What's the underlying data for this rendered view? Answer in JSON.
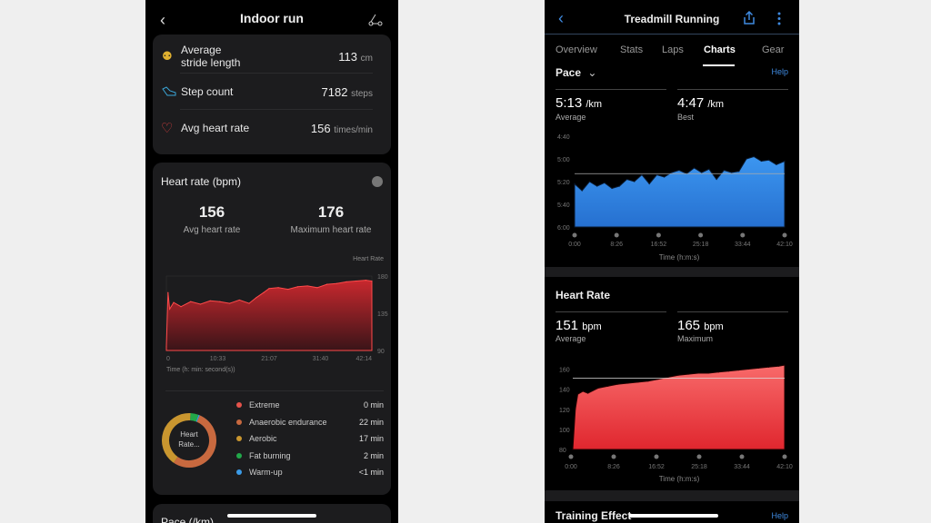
{
  "left": {
    "header": {
      "title": "Indoor run",
      "back_icon": "chevron-left-icon",
      "route_icon": "route-icon"
    },
    "stats": [
      {
        "icon": "footprints-icon",
        "label_line1": "Average",
        "label_line2": "stride length",
        "value": "113",
        "unit": "cm",
        "color": "#e0b030"
      },
      {
        "icon": "shoe-icon",
        "label": "Step count",
        "value": "7182",
        "unit": "steps",
        "color": "#3aa6d8"
      },
      {
        "icon": "heart-icon",
        "label": "Avg heart rate",
        "value": "156",
        "unit": "times/min",
        "color": "#d84040"
      }
    ],
    "heart_card": {
      "title": "Heart rate (bpm)",
      "avg_value": "156",
      "avg_label": "Avg heart rate",
      "max_value": "176",
      "max_label": "Maximum heart rate",
      "series_label": "Heart Rate",
      "x_axis_label": "Time  (h: min: second(s))",
      "zones": [
        {
          "name": "Extreme",
          "value": "0 min",
          "minutes": 0,
          "color": "#e5534b"
        },
        {
          "name": "Anaerobic endurance",
          "value": "22 min",
          "minutes": 22,
          "color": "#c8693f"
        },
        {
          "name": "Aerobic",
          "value": "17 min",
          "minutes": 17,
          "color": "#c9962f"
        },
        {
          "name": "Fat burning",
          "value": "2 min",
          "minutes": 2,
          "color": "#22a84a"
        },
        {
          "name": "Warm-up",
          "value": "<1 min",
          "minutes": 0.3,
          "color": "#3b9be8"
        }
      ],
      "donut_center": "Heart Rate..."
    },
    "next_card_title": "Pace (/km)"
  },
  "right": {
    "header": {
      "title": "Treadmill Running",
      "back_icon": "chevron-left-icon",
      "share_icon": "share-icon",
      "more_icon": "more-vertical-icon"
    },
    "tabs": [
      "Overview",
      "Stats",
      "Laps",
      "Charts",
      "Gear"
    ],
    "active_tab": "Charts",
    "pace": {
      "selector": "Pace",
      "help": "Help",
      "avg": "5:13",
      "avg_unit": "/km",
      "avg_label": "Average",
      "best": "4:47",
      "best_unit": "/km",
      "best_label": "Best",
      "x_axis_label": "Time (h:m:s)"
    },
    "heart": {
      "title": "Heart Rate",
      "avg": "151",
      "avg_unit": "bpm",
      "avg_label": "Average",
      "max": "165",
      "max_unit": "bpm",
      "max_label": "Maximum",
      "x_axis_label": "Time (h:m:s)"
    },
    "training": {
      "title": "Training Effect",
      "help": "Help"
    }
  },
  "chart_data": [
    {
      "type": "area",
      "title": "Heart rate (bpm)",
      "ylabel": "Heart Rate",
      "xlabel": "Time  (h: min: second(s))",
      "ylim": [
        90,
        180
      ],
      "y_ticks": [
        "180",
        "135",
        "90"
      ],
      "x_ticks": [
        "0",
        "10:33",
        "21:07",
        "31:40",
        "42:14"
      ],
      "color": "#e0383e",
      "x": [
        "0:00",
        "0:20",
        "0:40",
        "1:30",
        "3:00",
        "5:00",
        "7:00",
        "9:00",
        "11:00",
        "13:00",
        "15:00",
        "17:00",
        "18:30",
        "20:00",
        "21:07",
        "23:00",
        "25:00",
        "27:00",
        "29:00",
        "31:00",
        "33:00",
        "35:00",
        "37:00",
        "39:00",
        "41:00",
        "42:14"
      ],
      "y": [
        95,
        160,
        140,
        148,
        143,
        149,
        146,
        150,
        149,
        147,
        151,
        147,
        154,
        160,
        165,
        166,
        164,
        167,
        168,
        166,
        170,
        171,
        173,
        174,
        175,
        174
      ]
    },
    {
      "type": "area",
      "title": "Pace",
      "xlabel": "Time (h:m:s)",
      "ylim": [
        "6:00",
        "4:40"
      ],
      "inverted": true,
      "y_ticks": [
        "4:40",
        "5:00",
        "5:20",
        "5:40",
        "6:00"
      ],
      "x_ticks": [
        "0:00",
        "8:26",
        "16:52",
        "25:18",
        "33:44",
        "42:10"
      ],
      "average": "5:13",
      "color": "#3a8ee8",
      "x": [
        "0:00",
        "1:30",
        "3:00",
        "4:30",
        "6:00",
        "7:30",
        "9:00",
        "10:30",
        "12:00",
        "13:30",
        "15:00",
        "16:30",
        "18:00",
        "19:30",
        "21:00",
        "22:30",
        "24:00",
        "25:30",
        "27:00",
        "28:30",
        "30:00",
        "31:30",
        "33:00",
        "34:30",
        "36:00",
        "37:30",
        "39:00",
        "40:30",
        "42:10"
      ],
      "y": [
        "5:22",
        "5:28",
        "5:20",
        "5:24",
        "5:21",
        "5:26",
        "5:24",
        "5:18",
        "5:20",
        "5:14",
        "5:22",
        "5:14",
        "5:16",
        "5:12",
        "5:10",
        "5:13",
        "5:08",
        "5:12",
        "5:09",
        "5:18",
        "5:10",
        "5:12",
        "5:11",
        "5:00",
        "4:58",
        "5:02",
        "5:01",
        "5:05",
        "5:02"
      ]
    },
    {
      "type": "area",
      "title": "Heart Rate",
      "xlabel": "Time (h:m:s)",
      "ylim": [
        80,
        165
      ],
      "y_ticks": [
        "160",
        "140",
        "120",
        "100",
        "80"
      ],
      "x_ticks": [
        "0:00",
        "8:26",
        "16:52",
        "25:18",
        "33:44",
        "42:10"
      ],
      "average": 151,
      "color": "#f04a4a",
      "x": [
        "0:00",
        "0:30",
        "1:00",
        "2:00",
        "3:00",
        "5:00",
        "7:00",
        "9:00",
        "11:00",
        "13:00",
        "15:00",
        "17:00",
        "19:00",
        "21:00",
        "23:00",
        "25:00",
        "27:00",
        "29:00",
        "31:00",
        "33:00",
        "35:00",
        "37:00",
        "39:00",
        "41:00",
        "42:10"
      ],
      "y": [
        80,
        120,
        135,
        138,
        136,
        141,
        143,
        145,
        146,
        147,
        148,
        150,
        152,
        154,
        155,
        156,
        156,
        157,
        158,
        159,
        160,
        161,
        162,
        163,
        164
      ]
    }
  ]
}
